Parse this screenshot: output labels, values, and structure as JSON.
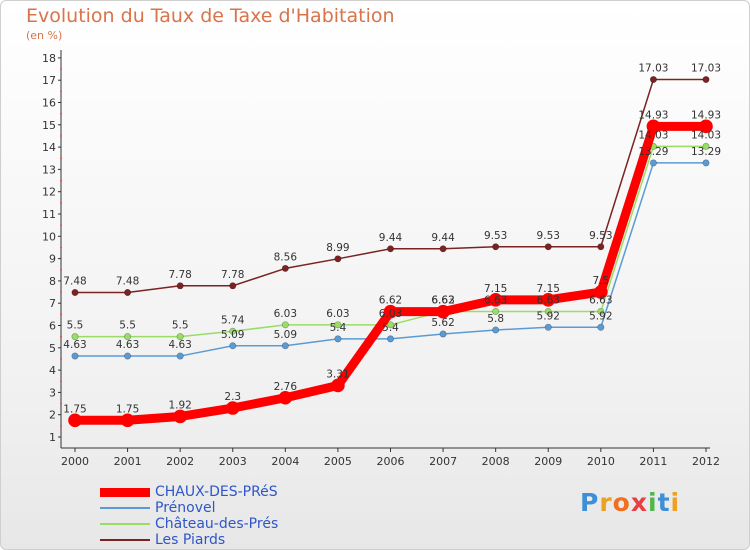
{
  "chart_data": {
    "type": "line",
    "title": "Evolution du Taux de Taxe d'Habitation",
    "subtitle": "(en %)",
    "x": [
      "2000",
      "2001",
      "2002",
      "2003",
      "2004",
      "2005",
      "2006",
      "2007",
      "2008",
      "2009",
      "2010",
      "2011",
      "2012"
    ],
    "ylim": [
      1,
      18
    ],
    "yticks": [
      "1",
      "2",
      "3",
      "4",
      "5",
      "6",
      "7",
      "8",
      "9",
      "10",
      "11",
      "12",
      "13",
      "14",
      "15",
      "16",
      "17",
      "18"
    ],
    "series": [
      {
        "name": "CHAUX-DES-PRéS",
        "color": "#ff0000",
        "values": [
          1.75,
          1.75,
          1.92,
          2.3,
          2.76,
          3.31,
          6.62,
          6.62,
          7.15,
          7.15,
          7.5,
          14.93,
          14.93
        ],
        "labels": [
          "1.75",
          "1.75",
          "1.92",
          "2.3",
          "2.76",
          "3.31",
          "6.62",
          "6.62",
          "7.15",
          "7.15",
          "7.5",
          "14.93",
          "14.93"
        ]
      },
      {
        "name": "Prénovel",
        "color": "#5b9bd5",
        "values": [
          4.63,
          4.63,
          4.63,
          5.09,
          5.09,
          5.4,
          5.4,
          5.62,
          5.8,
          5.92,
          5.92,
          13.29,
          13.29
        ],
        "labels": [
          "4.63",
          "4.63",
          "4.63",
          "5.09",
          "5.09",
          "5.4",
          "5.4",
          "5.62",
          "5.8",
          "5.92",
          "5.92",
          "13.29",
          "13.29"
        ]
      },
      {
        "name": "Château-des-Prés",
        "color": "#99dd66",
        "values": [
          5.5,
          5.5,
          5.5,
          5.74,
          6.03,
          6.03,
          6.03,
          6.63,
          6.63,
          6.63,
          6.63,
          14.03,
          14.03
        ],
        "labels": [
          "5.5",
          "5.5",
          "5.5",
          "5.74",
          "6.03",
          "6.03",
          "6.03",
          "6.63",
          "6.63",
          "6.63",
          "6.63",
          "14.03",
          "14.03"
        ]
      },
      {
        "name": "Les Piards",
        "color": "#7b2222",
        "values": [
          7.48,
          7.48,
          7.78,
          7.78,
          8.56,
          8.99,
          9.44,
          9.44,
          9.53,
          9.53,
          9.53,
          17.03,
          17.03
        ],
        "labels": [
          "7.48",
          "7.48",
          "7.78",
          "7.78",
          "8.56",
          "8.99",
          "9.44",
          "9.44",
          "9.53",
          "9.53",
          "9.53",
          "17.03",
          "17.03"
        ]
      }
    ],
    "grid": false,
    "legend": "bottom-left"
  },
  "brand": {
    "letters": [
      "P",
      "r",
      "o",
      "x",
      "i",
      "t",
      "i"
    ],
    "colors": [
      "#3f8fd6",
      "#f0a020",
      "#f07020",
      "#e84040",
      "#4fb848",
      "#3f8fd6",
      "#f0a020"
    ]
  }
}
